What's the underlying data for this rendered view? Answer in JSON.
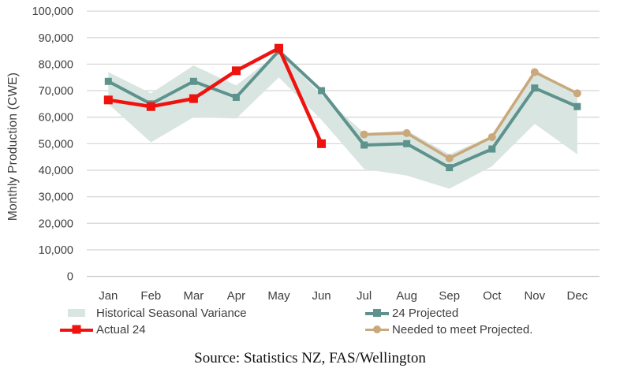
{
  "chart_data": {
    "type": "line",
    "title": "",
    "xlabel": "",
    "ylabel": "Monthly Production (CWE)",
    "categories": [
      "Jan",
      "Feb",
      "Mar",
      "Apr",
      "May",
      "Jun",
      "Jul",
      "Aug",
      "Sep",
      "Oct",
      "Nov",
      "Dec"
    ],
    "ylim": [
      0,
      100000
    ],
    "y_tick_step": 10000,
    "y_tick_labels": [
      "0",
      "10,000",
      "20,000",
      "30,000",
      "40,000",
      "50,000",
      "60,000",
      "70,000",
      "80,000",
      "90,000",
      "100,000"
    ],
    "grid": true,
    "legend_position": "bottom",
    "colors": {
      "band": "#d9e5e1",
      "projected": "#5e938d",
      "needed": "#c9a87b",
      "actual": "#ef1310",
      "gridline": "#d8d8d8",
      "zero_line": "#c2c2c2",
      "axis_text": "#3d3d3d"
    },
    "series": [
      {
        "name": "Historical Seasonal Variance",
        "type": "band",
        "color": "#d9e5e1",
        "lower": [
          65000,
          50500,
          60000,
          59500,
          75000,
          59000,
          40500,
          38000,
          33000,
          41500,
          57500,
          46000
        ],
        "upper": [
          77000,
          69000,
          79500,
          72000,
          84500,
          68500,
          54000,
          55000,
          46000,
          53000,
          78000,
          68500
        ]
      },
      {
        "name": "24 Projected",
        "type": "line",
        "marker": "square",
        "marker_size": 9,
        "line_width": 4,
        "color": "#5e938d",
        "values": [
          73500,
          65000,
          73500,
          67500,
          85000,
          70000,
          49500,
          50000,
          41000,
          48000,
          71000,
          64000
        ]
      },
      {
        "name": "Needed to meet Projected.",
        "type": "line",
        "marker": "circle",
        "marker_size": 10,
        "line_width": 3.5,
        "color": "#c9a87b",
        "values": [
          null,
          null,
          null,
          null,
          null,
          null,
          53500,
          54000,
          44500,
          52500,
          77000,
          69000
        ]
      },
      {
        "name": "Actual 24",
        "type": "line",
        "marker": "square",
        "marker_size": 11,
        "line_width": 4.5,
        "color": "#ef1310",
        "values": [
          66500,
          64000,
          67000,
          77500,
          86000,
          50000,
          null,
          null,
          null,
          null,
          null,
          null
        ]
      }
    ]
  },
  "legend": {
    "row1_left": "Historical Seasonal Variance",
    "row1_right": "24 Projected",
    "row2_left": "Actual 24",
    "row2_right": "Needed to meet Projected."
  },
  "source": {
    "text": "Source: Statistics NZ, FAS/Wellington"
  }
}
